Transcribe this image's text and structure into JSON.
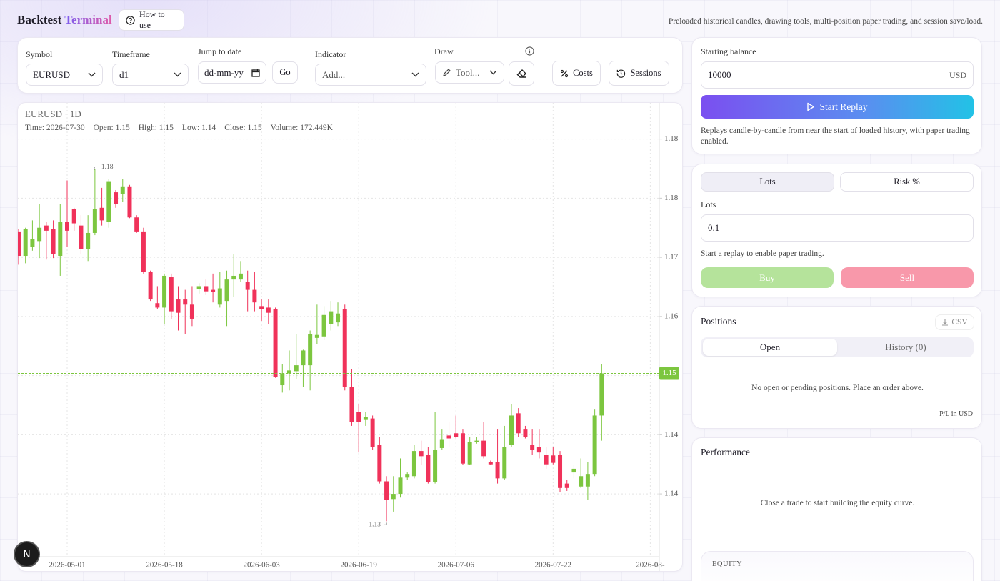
{
  "header": {
    "brand": "Backtest",
    "brand_accent": "Terminal",
    "help_button": "How to use",
    "tagline": "Preloaded historical candles, drawing tools, multi-position paper trading, and session save/load."
  },
  "toolbar": {
    "symbol_label": "Symbol",
    "symbol": "EURUSD",
    "timeframe_label": "Timeframe",
    "timeframe": "d1",
    "date_label": "Jump to date",
    "date_placeholder": "dd-mm-yy",
    "go": "Go",
    "indicator_label": "Indicator",
    "indicator_placeholder": "Add...",
    "draw_label": "Draw",
    "draw_tool": "Tool...",
    "costs": "Costs",
    "sessions": "Sessions"
  },
  "chart_data": {
    "type": "candlestick",
    "title": "EURUSD · 1D",
    "legend": [
      "Time: 2026-07-30",
      "Open: 1.15",
      "High: 1.15",
      "Low: 1.14",
      "Close: 1.15",
      "Volume: 172.449K"
    ],
    "up_color": "#7cc63f",
    "down_color": "#f0325a",
    "grid": true,
    "open": [
      1.1715,
      1.1682,
      1.1694,
      1.1702,
      1.1723,
      1.1718,
      1.1682,
      1.1728,
      1.1745,
      1.1723,
      1.1691,
      1.1713,
      1.1747,
      1.1728,
      1.1768,
      1.1766,
      1.1776,
      1.1734,
      1.1715,
      1.166,
      1.1618,
      1.1612,
      1.1653,
      1.1623,
      1.1623,
      1.1616,
      1.1637,
      1.1641,
      1.1636,
      1.1616,
      1.1621,
      1.165,
      1.165,
      1.1647,
      1.1636,
      1.1614,
      1.1612,
      1.161,
      1.1507,
      1.1523,
      1.1526,
      1.1534,
      1.1534,
      1.1571,
      1.1573,
      1.159,
      1.1592,
      1.161,
      1.1505,
      1.1471,
      1.146,
      1.1462,
      1.1426,
      1.1377,
      1.1353,
      1.136,
      1.1382,
      1.1384,
      1.1418,
      1.1413,
      1.1376,
      1.1422,
      1.1439,
      1.1442,
      1.1442,
      1.14,
      1.143,
      1.1432,
      1.1403,
      1.1403,
      1.1381,
      1.1426,
      1.1469,
      1.1447,
      1.1426,
      1.1423,
      1.1413,
      1.1412,
      1.1413,
      1.1374,
      1.1389,
      1.137,
      1.137,
      1.1387,
      1.1466
    ],
    "high": [
      1.1718,
      1.172,
      1.173,
      1.1752,
      1.1728,
      1.173,
      1.1752,
      1.1784,
      1.1747,
      1.1737,
      1.1737,
      1.18,
      1.1774,
      1.1786,
      1.1771,
      1.1786,
      1.1778,
      1.1737,
      1.172,
      1.1662,
      1.1641,
      1.1658,
      1.1658,
      1.1641,
      1.1636,
      1.1641,
      1.1645,
      1.165,
      1.1658,
      1.166,
      1.1662,
      1.1684,
      1.1675,
      1.1662,
      1.166,
      1.1623,
      1.1623,
      1.1612,
      1.1536,
      1.1554,
      1.1576,
      1.1555,
      1.1581,
      1.1616,
      1.1614,
      1.1621,
      1.1619,
      1.1616,
      1.1529,
      1.1481,
      1.1471,
      1.1466,
      1.1437,
      1.1384,
      1.1384,
      1.1408,
      1.1389,
      1.1426,
      1.1432,
      1.1423,
      1.1471,
      1.1447,
      1.1457,
      1.1466,
      1.1447,
      1.1437,
      1.1437,
      1.1457,
      1.1405,
      1.1447,
      1.1452,
      1.1481,
      1.1476,
      1.1452,
      1.1447,
      1.1447,
      1.1423,
      1.1423,
      1.1418,
      1.1379,
      1.1399,
      1.1408,
      1.1403,
      1.1474,
      1.1536
    ],
    "low": [
      1.167,
      1.1672,
      1.1689,
      1.1679,
      1.1677,
      1.1679,
      1.1655,
      1.1694,
      1.1716,
      1.1684,
      1.1675,
      1.171,
      1.1723,
      1.172,
      1.1747,
      1.1755,
      1.1733,
      1.1713,
      1.1658,
      1.1621,
      1.161,
      1.159,
      1.1597,
      1.1581,
      1.1576,
      1.1587,
      1.1631,
      1.1629,
      1.1619,
      1.1612,
      1.1587,
      1.1626,
      1.1647,
      1.1607,
      1.1607,
      1.1594,
      1.159,
      1.1517,
      1.1497,
      1.15,
      1.1515,
      1.1505,
      1.15,
      1.1563,
      1.1568,
      1.1581,
      1.1587,
      1.15,
      1.1452,
      1.1416,
      1.1452,
      1.142,
      1.1374,
      1.1323,
      1.1336,
      1.1355,
      1.1379,
      1.1381,
      1.1399,
      1.1374,
      1.1374,
      1.142,
      1.1423,
      1.1435,
      1.1399,
      1.1399,
      1.1428,
      1.1408,
      1.1399,
      1.1374,
      1.1379,
      1.1423,
      1.1437,
      1.1435,
      1.1413,
      1.1408,
      1.1394,
      1.14,
      1.1362,
      1.1364,
      1.1381,
      1.1368,
      1.1352,
      1.1384,
      1.1432
    ],
    "close": [
      1.1682,
      1.1718,
      1.1705,
      1.172,
      1.1716,
      1.1684,
      1.1728,
      1.1716,
      1.1726,
      1.1691,
      1.1713,
      1.1745,
      1.173,
      1.1783,
      1.1752,
      1.1776,
      1.1734,
      1.1715,
      1.166,
      1.1623,
      1.1612,
      1.1655,
      1.1607,
      1.1605,
      1.1616,
      1.1597,
      1.1641,
      1.1634,
      1.1633,
      1.1638,
      1.165,
      1.1655,
      1.1658,
      1.1636,
      1.1619,
      1.161,
      1.1605,
      1.1518,
      1.1523,
      1.1527,
      1.1534,
      1.1554,
      1.1576,
      1.1575,
      1.1602,
      1.1607,
      1.1604,
      1.1505,
      1.1457,
      1.1457,
      1.1464,
      1.1423,
      1.1377,
      1.1352,
      1.136,
      1.1382,
      1.1387,
      1.1418,
      1.1411,
      1.1376,
      1.142,
      1.1434,
      1.1435,
      1.1437,
      1.1401,
      1.143,
      1.1432,
      1.1411,
      1.14,
      1.1381,
      1.1423,
      1.1466,
      1.1442,
      1.1437,
      1.142,
      1.1416,
      1.14,
      1.1402,
      1.1368,
      1.1368,
      1.1394,
      1.1384,
      1.1387,
      1.1466,
      1.1523
    ],
    "xlim": [
      -0.1,
      92.3
    ],
    "xticks": [
      {
        "value": 7,
        "label": "2026-05-01"
      },
      {
        "value": 21,
        "label": "2026-05-18"
      },
      {
        "value": 35,
        "label": "2026-06-03"
      },
      {
        "value": 49,
        "label": "2026-06-19"
      },
      {
        "value": 63,
        "label": "2026-07-06"
      },
      {
        "value": 77,
        "label": "2026-07-22"
      },
      {
        "value": 91,
        "label": "2026-08-"
      }
    ],
    "ylim": [
      1.1275,
      1.1887
    ],
    "yticks": [
      {
        "value": 1.184,
        "label": "1.18"
      },
      {
        "value": 1.176,
        "label": "1.18"
      },
      {
        "value": 1.168,
        "label": "1.17"
      },
      {
        "value": 1.16,
        "label": "1.16"
      },
      {
        "value": 1.152,
        "label": "1.15"
      },
      {
        "value": 1.144,
        "label": "1.14"
      },
      {
        "value": 1.136,
        "label": "1.14"
      }
    ],
    "last_price_label": "1.15",
    "high_label": "1.18",
    "low_label": "1.13"
  },
  "replay": {
    "balance_label": "Starting balance",
    "balance": 10000,
    "currency": "USD",
    "start_button": "Start Replay",
    "note": "Replays candle-by-candle from near the start of loaded history, with paper trading enabled."
  },
  "trade": {
    "tabs": [
      "Lots",
      "Risk %"
    ],
    "lots_label": "Lots",
    "lots": 0.1,
    "note": "Start a replay to enable paper trading.",
    "buy": "Buy",
    "sell": "Sell"
  },
  "positions": {
    "title": "Positions",
    "export": "CSV",
    "tabs": [
      "Open",
      "History (0)"
    ],
    "empty": "No open or pending positions. Place an order above.",
    "footnote": "P/L in USD"
  },
  "performance": {
    "title": "Performance",
    "empty": "Close a trade to start building the equity curve.",
    "equity_label": "EQUITY"
  },
  "badge": "N"
}
